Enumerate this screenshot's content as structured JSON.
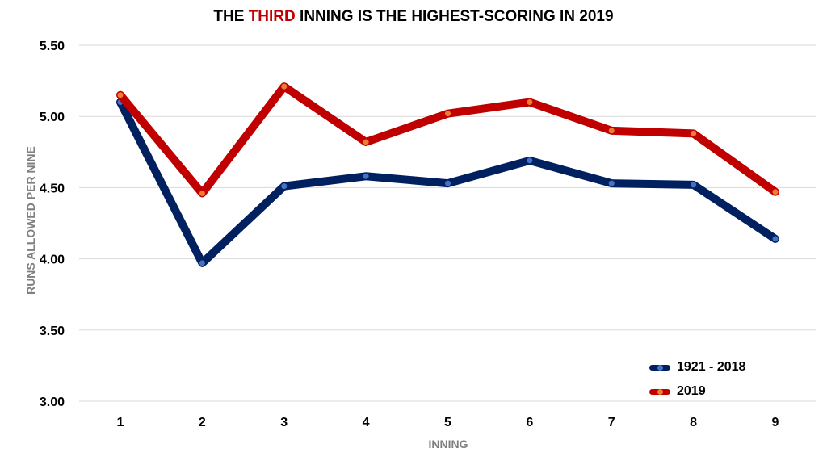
{
  "chart_data": {
    "type": "line",
    "title_parts": [
      "THE ",
      "THIRD",
      " INNING IS THE HIGHEST-SCORING  IN 2019"
    ],
    "xlabel": "INNING",
    "ylabel": "RUNS ALLOWED PER NINE",
    "x": [
      1,
      2,
      3,
      4,
      5,
      6,
      7,
      8,
      9
    ],
    "ylim": [
      3.0,
      5.5
    ],
    "yticks": [
      "3.00",
      "3.50",
      "4.00",
      "4.50",
      "5.00",
      "5.50"
    ],
    "grid": true,
    "legend_position": "bottom-right",
    "series": [
      {
        "name": "1921 - 2018",
        "color": "#002060",
        "marker": "#4472c4",
        "values": [
          5.1,
          3.97,
          4.51,
          4.58,
          4.53,
          4.69,
          4.53,
          4.52,
          4.14
        ]
      },
      {
        "name": "2019",
        "color": "#c00000",
        "marker": "#ed7d31",
        "values": [
          5.15,
          4.46,
          5.21,
          4.82,
          5.02,
          5.1,
          4.9,
          4.88,
          4.47
        ]
      }
    ]
  }
}
